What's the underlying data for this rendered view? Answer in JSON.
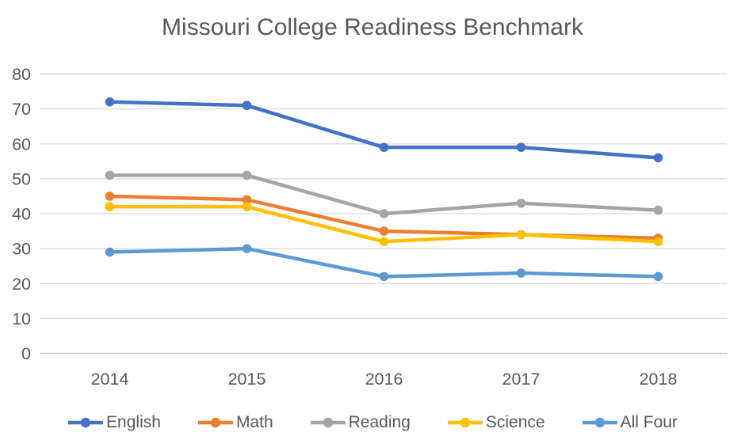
{
  "chart_data": {
    "type": "line",
    "title": "Missouri College Readiness Benchmark",
    "x": [
      "2014",
      "2015",
      "2016",
      "2017",
      "2018"
    ],
    "series": [
      {
        "name": "English",
        "color": "#4472C4",
        "values": [
          72,
          71,
          59,
          59,
          56
        ]
      },
      {
        "name": "Math",
        "color": "#ED7D31",
        "values": [
          45,
          44,
          35,
          34,
          33
        ]
      },
      {
        "name": "Reading",
        "color": "#A5A5A5",
        "values": [
          51,
          51,
          40,
          43,
          41
        ]
      },
      {
        "name": "Science",
        "color": "#FFC000",
        "values": [
          42,
          42,
          32,
          34,
          32
        ]
      },
      {
        "name": "All Four",
        "color": "#5B9BD5",
        "values": [
          29,
          30,
          22,
          23,
          22
        ]
      }
    ],
    "ylim": [
      0,
      80
    ],
    "ytick_step": 10,
    "grid": true,
    "legend_position": "bottom",
    "colors": {
      "text": "#595959",
      "gridline": "#D9D9D9",
      "axis_line": "#BFBFBF",
      "background": "#FFFFFF"
    }
  }
}
